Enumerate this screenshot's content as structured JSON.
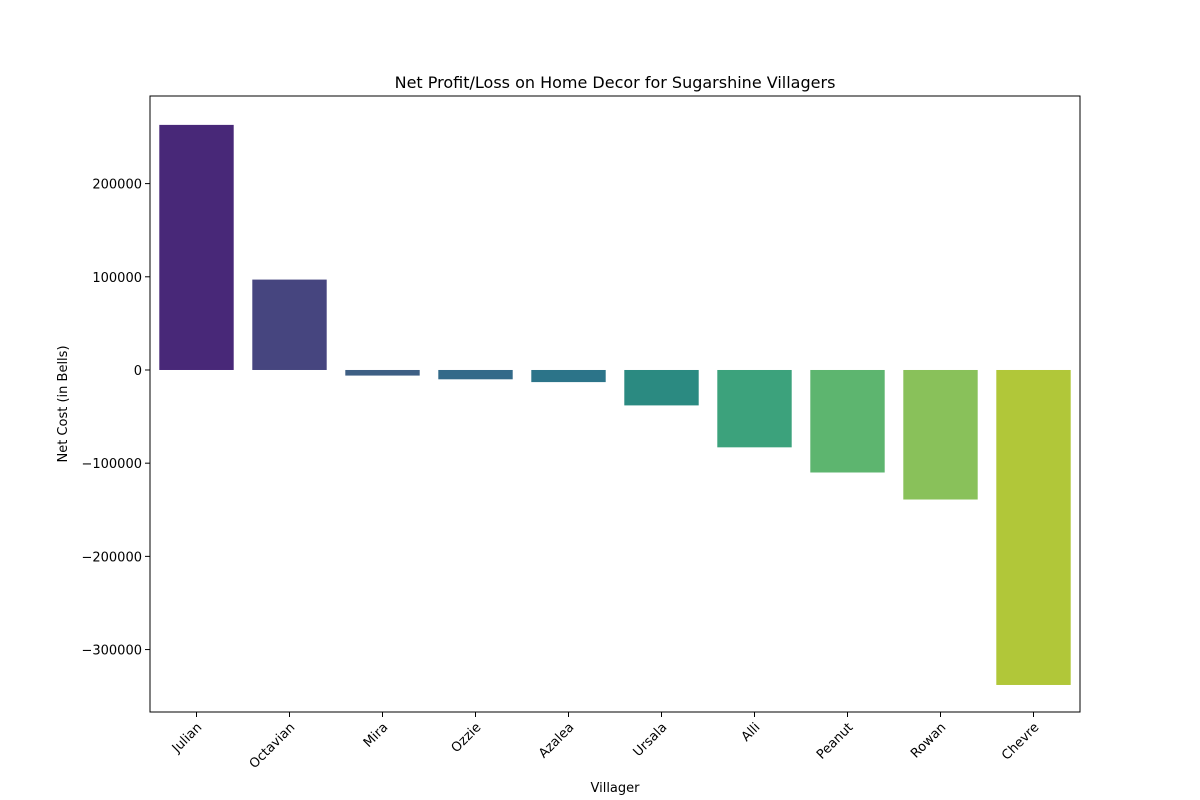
{
  "chart_data": {
    "type": "bar",
    "title": "Net Profit/Loss on Home Decor for Sugarshine Villagers",
    "xlabel": "Villager",
    "ylabel": "Net Cost (in Bells)",
    "categories": [
      "Julian",
      "Octavian",
      "Mira",
      "Ozzie",
      "Azalea",
      "Ursala",
      "Alli",
      "Peanut",
      "Rowan",
      "Chevre"
    ],
    "values": [
      263000,
      97000,
      -6000,
      -10000,
      -13000,
      -38000,
      -83000,
      -110000,
      -139000,
      -338000
    ],
    "colors": [
      "#482878",
      "#46457f",
      "#3e5f84",
      "#336a89",
      "#2c7489",
      "#2b8a81",
      "#3ca27c",
      "#5db56f",
      "#89c15a",
      "#b1c739"
    ],
    "ylim": [
      -367000,
      294000
    ],
    "yticks": [
      -300000,
      -200000,
      -100000,
      0,
      100000,
      200000
    ],
    "ytick_labels": [
      "−300000",
      "−200000",
      "−100000",
      "0",
      "100000",
      "200000"
    ],
    "grid": false,
    "legend": "none"
  }
}
